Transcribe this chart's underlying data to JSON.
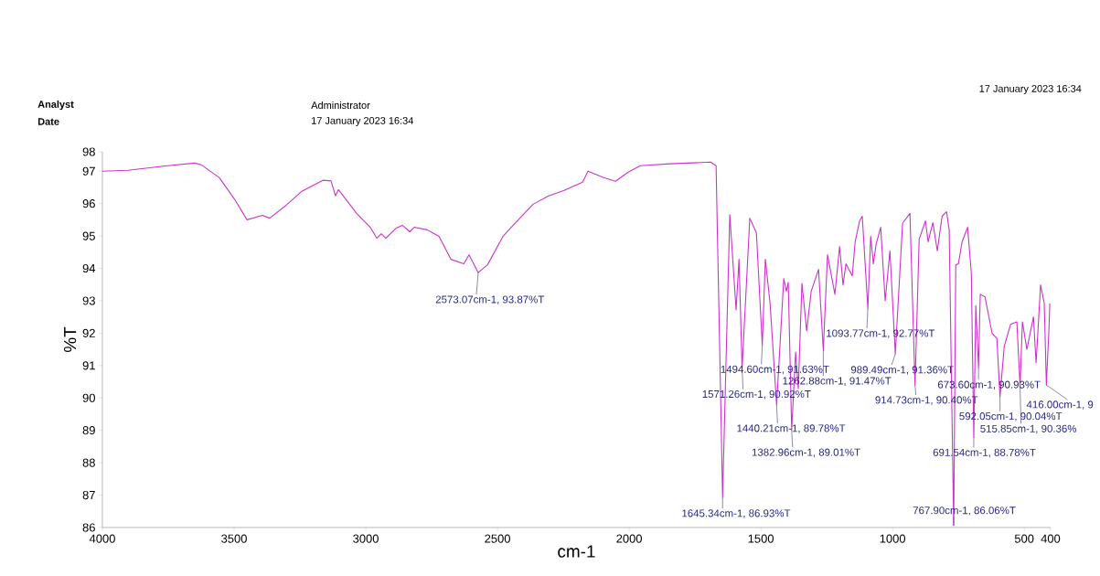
{
  "chart_data": {
    "type": "line",
    "xlabel": "cm-1",
    "ylabel": "%T",
    "xlim": [
      4000,
      400
    ],
    "ylim": [
      86,
      97.6
    ],
    "xticks": [
      4000,
      3500,
      3000,
      2500,
      2000,
      1500,
      1000,
      500,
      400
    ],
    "yticks": [
      86,
      87,
      88,
      89,
      90,
      91,
      92,
      93,
      94,
      95,
      96,
      97,
      {
        "value": 97.6,
        "label": "98"
      }
    ],
    "line_style": "solid",
    "series": [
      {
        "color": "#cc33cc",
        "x": [
          4000,
          3903,
          3753,
          3649,
          3625,
          3556,
          3497,
          3451,
          3392,
          3365,
          3302,
          3243,
          3163,
          3132,
          3115,
          3104,
          3035,
          2983,
          2958,
          2941,
          2924,
          2885,
          2861,
          2833,
          2816,
          2767,
          2722,
          2677,
          2628,
          2608,
          2573.07,
          2538,
          2479,
          2434,
          2365,
          2306,
          2247,
          2177,
          2156,
          2097,
          2052,
          2003,
          1958,
          1844,
          1691,
          1670,
          1645.34,
          1618,
          1594,
          1583,
          1571.26,
          1542,
          1517,
          1494.6,
          1483,
          1465,
          1440.21,
          1413,
          1403,
          1396,
          1382.96,
          1368,
          1358,
          1344,
          1326,
          1309,
          1281,
          1262.88,
          1247,
          1219,
          1201,
          1188,
          1177,
          1153,
          1142,
          1125,
          1115,
          1093.77,
          1083,
          1073,
          1062,
          1045,
          1028,
          1010,
          989.49,
          962,
          934,
          914.73,
          899,
          875,
          865,
          847,
          830,
          812,
          795,
          785,
          767.9,
          760,
          750,
          736,
          715,
          701,
          691.54,
          684,
          673.6,
          667,
          649,
          622,
          604,
          592.05,
          576,
          552,
          528,
          515.85,
          507,
          490,
          465,
          455,
          438,
          424,
          416,
          406,
          403
        ],
        "values": [
          97.0,
          97.03,
          97.17,
          97.25,
          97.2,
          96.8,
          96.12,
          95.5,
          95.64,
          95.55,
          95.95,
          96.38,
          96.72,
          96.7,
          96.24,
          96.43,
          95.7,
          95.27,
          94.93,
          95.07,
          94.93,
          95.24,
          95.33,
          95.13,
          95.27,
          95.19,
          94.99,
          94.28,
          94.14,
          94.42,
          93.87,
          94.11,
          94.99,
          95.39,
          95.98,
          96.24,
          96.41,
          96.66,
          97.0,
          96.8,
          96.69,
          96.97,
          97.17,
          97.23,
          97.28,
          97.17,
          86.93,
          95.66,
          92.72,
          94.28,
          90.92,
          95.55,
          95.1,
          91.63,
          94.28,
          92.92,
          89.78,
          93.69,
          93.29,
          93.57,
          89.01,
          91.42,
          90.29,
          93.54,
          92.07,
          93.29,
          93.97,
          91.47,
          94.42,
          93.2,
          94.68,
          93.49,
          94.14,
          93.77,
          94.82,
          95.47,
          95.61,
          92.77,
          94.99,
          94.14,
          94.76,
          95.27,
          93.0,
          94.54,
          91.36,
          95.39,
          95.7,
          90.4,
          94.9,
          95.47,
          94.82,
          95.41,
          94.54,
          95.61,
          95.75,
          95.19,
          86.06,
          94.11,
          94.14,
          94.82,
          95.27,
          93.86,
          88.78,
          92.86,
          90.93,
          93.2,
          93.12,
          91.99,
          91.84,
          90.04,
          91.59,
          92.27,
          92.35,
          90.36,
          92.35,
          91.5,
          92.5,
          91.08,
          93.49,
          92.92,
          90.4,
          92.16,
          92.92
        ]
      }
    ],
    "annotations": [
      "Analyst",
      "Administrator",
      "Date",
      "17 January 2023 16:34",
      "17 January 2023 16:34",
      {
        "text": "2573.07cm-1, 93.87%T",
        "x": 2573.07,
        "y": 93.87
      },
      {
        "text": "1645.34cm-1, 86.93%T",
        "x": 1645.34,
        "y": 86.93
      },
      {
        "text": "1571.26cm-1, 90.92%T",
        "x": 1571.26,
        "y": 90.92
      },
      {
        "text": "1494.60cm-1, 91.63%T",
        "x": 1494.6,
        "y": 91.63
      },
      {
        "text": "1440.21cm-1, 89.78%T",
        "x": 1440.21,
        "y": 89.78
      },
      {
        "text": "1382.96cm-1, 89.01%T",
        "x": 1382.96,
        "y": 89.01
      },
      {
        "text": "1262.88cm-1, 91.47%T",
        "x": 1262.88,
        "y": 91.47
      },
      {
        "text": "1093.77cm-1, 92.77%T",
        "x": 1093.77,
        "y": 92.77
      },
      {
        "text": "989.49cm-1, 91.36%T",
        "x": 989.49,
        "y": 91.36
      },
      {
        "text": "914.73cm-1, 90.40%T",
        "x": 914.73,
        "y": 90.4
      },
      {
        "text": "767.90cm-1, 86.06%T",
        "x": 767.9,
        "y": 86.06
      },
      {
        "text": "691.54cm-1, 88.78%T",
        "x": 691.54,
        "y": 88.78
      },
      {
        "text": "673.60cm-1, 90.93%T",
        "x": 673.6,
        "y": 90.93
      },
      {
        "text": "592.05cm-1, 90.04%T",
        "x": 592.05,
        "y": 90.04
      },
      {
        "text": "515.85cm-1, 90.36%",
        "x": 515.85,
        "y": 90.36
      },
      {
        "text": "416.00cm-1, 9",
        "x": 416,
        "y": 90.4
      }
    ]
  }
}
